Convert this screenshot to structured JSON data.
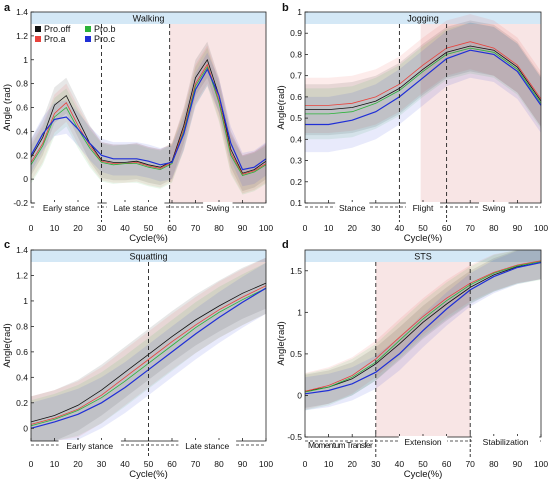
{
  "figure": {
    "legend": [
      {
        "name": "Pro.off",
        "color": "#111111"
      },
      {
        "name": "Pro.a",
        "color": "#e8423c"
      },
      {
        "name": "Pro.b",
        "color": "#2bb33a"
      },
      {
        "name": "Pro.c",
        "color": "#1f2fd6"
      }
    ]
  },
  "chart_data": [
    {
      "panel_letter": "a",
      "type": "line",
      "title": "Walking",
      "xlabel": "Cycle(%)",
      "ylabel": "Angle (rad)",
      "xlim": [
        0,
        100
      ],
      "ylim": [
        -0.2,
        1.4
      ],
      "xticks": [
        0,
        10,
        20,
        30,
        40,
        50,
        60,
        70,
        80,
        90,
        100
      ],
      "yticks": [
        -0.2,
        0,
        0.2,
        0.4,
        0.6,
        0.8,
        1,
        1.2,
        1.4
      ],
      "dividers": [
        30,
        59
      ],
      "shaded_region": [
        59,
        100
      ],
      "phases": [
        {
          "label": "Early stance",
          "from": 0,
          "to": 30
        },
        {
          "label": "Late stance",
          "from": 30,
          "to": 59
        },
        {
          "label": "Swing",
          "from": 59,
          "to": 100
        }
      ],
      "legend_position": "top-left",
      "x": [
        0,
        5,
        10,
        15,
        20,
        25,
        30,
        35,
        40,
        45,
        50,
        55,
        60,
        65,
        70,
        75,
        80,
        85,
        90,
        95,
        100
      ],
      "series": [
        {
          "name": "Pro.off",
          "values": [
            0.18,
            0.35,
            0.62,
            0.7,
            0.5,
            0.3,
            0.16,
            0.14,
            0.14,
            0.15,
            0.12,
            0.1,
            0.15,
            0.45,
            0.85,
            1.0,
            0.7,
            0.25,
            0.05,
            0.08,
            0.15
          ],
          "band": 0.15
        },
        {
          "name": "Pro.a",
          "values": [
            0.14,
            0.3,
            0.55,
            0.64,
            0.45,
            0.28,
            0.15,
            0.13,
            0.13,
            0.14,
            0.11,
            0.09,
            0.14,
            0.42,
            0.8,
            0.96,
            0.66,
            0.22,
            0.04,
            0.07,
            0.13
          ],
          "band": 0.16
        },
        {
          "name": "Pro.b",
          "values": [
            0.12,
            0.28,
            0.52,
            0.6,
            0.42,
            0.26,
            0.14,
            0.12,
            0.13,
            0.13,
            0.1,
            0.08,
            0.13,
            0.4,
            0.78,
            0.94,
            0.64,
            0.2,
            0.03,
            0.06,
            0.12
          ],
          "band": 0.16
        },
        {
          "name": "Pro.c",
          "values": [
            0.2,
            0.38,
            0.5,
            0.52,
            0.42,
            0.3,
            0.2,
            0.17,
            0.17,
            0.17,
            0.15,
            0.12,
            0.14,
            0.38,
            0.75,
            0.92,
            0.7,
            0.3,
            0.08,
            0.1,
            0.17
          ],
          "band": 0.14
        }
      ]
    },
    {
      "panel_letter": "b",
      "type": "line",
      "title": "Jogging",
      "xlabel": "Cycle(%)",
      "ylabel": "Angle(rad)",
      "xlim": [
        0,
        100
      ],
      "ylim": [
        0.1,
        1.0
      ],
      "xticks": [
        0,
        10,
        20,
        30,
        40,
        50,
        60,
        70,
        80,
        90,
        100
      ],
      "yticks": [
        0.1,
        0.2,
        0.3,
        0.4,
        0.5,
        0.6,
        0.7,
        0.8,
        0.9,
        1
      ],
      "dividers": [
        40,
        60
      ],
      "shaded_region": [
        49,
        100
      ],
      "phases": [
        {
          "label": "Stance",
          "from": 0,
          "to": 40
        },
        {
          "label": "Flight",
          "from": 40,
          "to": 60
        },
        {
          "label": "Swing",
          "from": 60,
          "to": 100
        }
      ],
      "x": [
        0,
        10,
        20,
        30,
        40,
        50,
        60,
        70,
        80,
        90,
        100
      ],
      "series": [
        {
          "name": "Pro.off",
          "values": [
            0.54,
            0.54,
            0.55,
            0.58,
            0.64,
            0.73,
            0.81,
            0.84,
            0.82,
            0.74,
            0.58
          ],
          "band": 0.12
        },
        {
          "name": "Pro.a",
          "values": [
            0.56,
            0.56,
            0.57,
            0.6,
            0.66,
            0.75,
            0.83,
            0.86,
            0.83,
            0.75,
            0.59
          ],
          "band": 0.13
        },
        {
          "name": "Pro.b",
          "values": [
            0.52,
            0.52,
            0.53,
            0.57,
            0.63,
            0.72,
            0.8,
            0.83,
            0.81,
            0.73,
            0.57
          ],
          "band": 0.12
        },
        {
          "name": "Pro.c",
          "values": [
            0.47,
            0.47,
            0.49,
            0.53,
            0.6,
            0.69,
            0.78,
            0.82,
            0.8,
            0.72,
            0.56
          ],
          "band": 0.13
        }
      ]
    },
    {
      "panel_letter": "c",
      "type": "line",
      "title": "Squatting",
      "xlabel": "Cycle(%)",
      "ylabel": "Angle(rad)",
      "xlim": [
        0,
        100
      ],
      "ylim": [
        -0.1,
        1.4
      ],
      "xticks": [
        0,
        10,
        20,
        30,
        40,
        50,
        60,
        70,
        80,
        90,
        100
      ],
      "yticks": [
        0,
        0.2,
        0.4,
        0.6,
        0.8,
        1,
        1.2,
        1.4
      ],
      "dividers": [
        50
      ],
      "shaded_region": null,
      "phases": [
        {
          "label": "Early stance",
          "from": 0,
          "to": 50
        },
        {
          "label": "Late stance",
          "from": 50,
          "to": 100
        }
      ],
      "x": [
        0,
        10,
        20,
        30,
        40,
        50,
        60,
        70,
        80,
        90,
        100
      ],
      "series": [
        {
          "name": "Pro.off",
          "values": [
            0.05,
            0.1,
            0.18,
            0.3,
            0.44,
            0.58,
            0.72,
            0.85,
            0.96,
            1.06,
            1.14
          ],
          "band": 0.2
        },
        {
          "name": "Pro.a",
          "values": [
            0.03,
            0.08,
            0.15,
            0.26,
            0.4,
            0.54,
            0.68,
            0.81,
            0.93,
            1.03,
            1.12
          ],
          "band": 0.22
        },
        {
          "name": "Pro.b",
          "values": [
            0.02,
            0.07,
            0.14,
            0.24,
            0.37,
            0.51,
            0.65,
            0.79,
            0.91,
            1.01,
            1.1
          ],
          "band": 0.2
        },
        {
          "name": "Pro.c",
          "values": [
            0.0,
            0.05,
            0.11,
            0.2,
            0.32,
            0.46,
            0.6,
            0.74,
            0.87,
            0.99,
            1.1
          ],
          "band": 0.2
        }
      ]
    },
    {
      "panel_letter": "d",
      "type": "line",
      "title": "STS",
      "xlabel": "Cycle(%)",
      "ylabel": "Angle(rad)",
      "xlim": [
        0,
        100
      ],
      "ylim": [
        -0.5,
        1.75
      ],
      "xticks": [
        0,
        10,
        20,
        30,
        40,
        50,
        60,
        70,
        80,
        90,
        100
      ],
      "yticks": [
        -0.5,
        0,
        0.5,
        1,
        1.5
      ],
      "dividers": [
        30,
        70
      ],
      "shaded_region": [
        30,
        70
      ],
      "phases": [
        {
          "label": "Momentum Transfer",
          "from": 0,
          "to": 30
        },
        {
          "label": "Extension",
          "from": 30,
          "to": 70
        },
        {
          "label": "Stabilization",
          "from": 70,
          "to": 100
        }
      ],
      "x": [
        0,
        10,
        20,
        30,
        40,
        50,
        60,
        70,
        80,
        90,
        100
      ],
      "series": [
        {
          "name": "Pro.off",
          "values": [
            0.05,
            0.1,
            0.2,
            0.38,
            0.62,
            0.88,
            1.1,
            1.3,
            1.45,
            1.55,
            1.6
          ],
          "band": 0.2
        },
        {
          "name": "Pro.a",
          "values": [
            0.05,
            0.12,
            0.24,
            0.44,
            0.7,
            0.95,
            1.17,
            1.35,
            1.48,
            1.57,
            1.62
          ],
          "band": 0.22
        },
        {
          "name": "Pro.b",
          "values": [
            0.04,
            0.1,
            0.22,
            0.4,
            0.66,
            0.92,
            1.14,
            1.33,
            1.47,
            1.56,
            1.61
          ],
          "band": 0.22
        },
        {
          "name": "Pro.c",
          "values": [
            0.02,
            0.06,
            0.14,
            0.28,
            0.5,
            0.78,
            1.04,
            1.27,
            1.43,
            1.54,
            1.6
          ],
          "band": 0.2
        }
      ]
    }
  ]
}
